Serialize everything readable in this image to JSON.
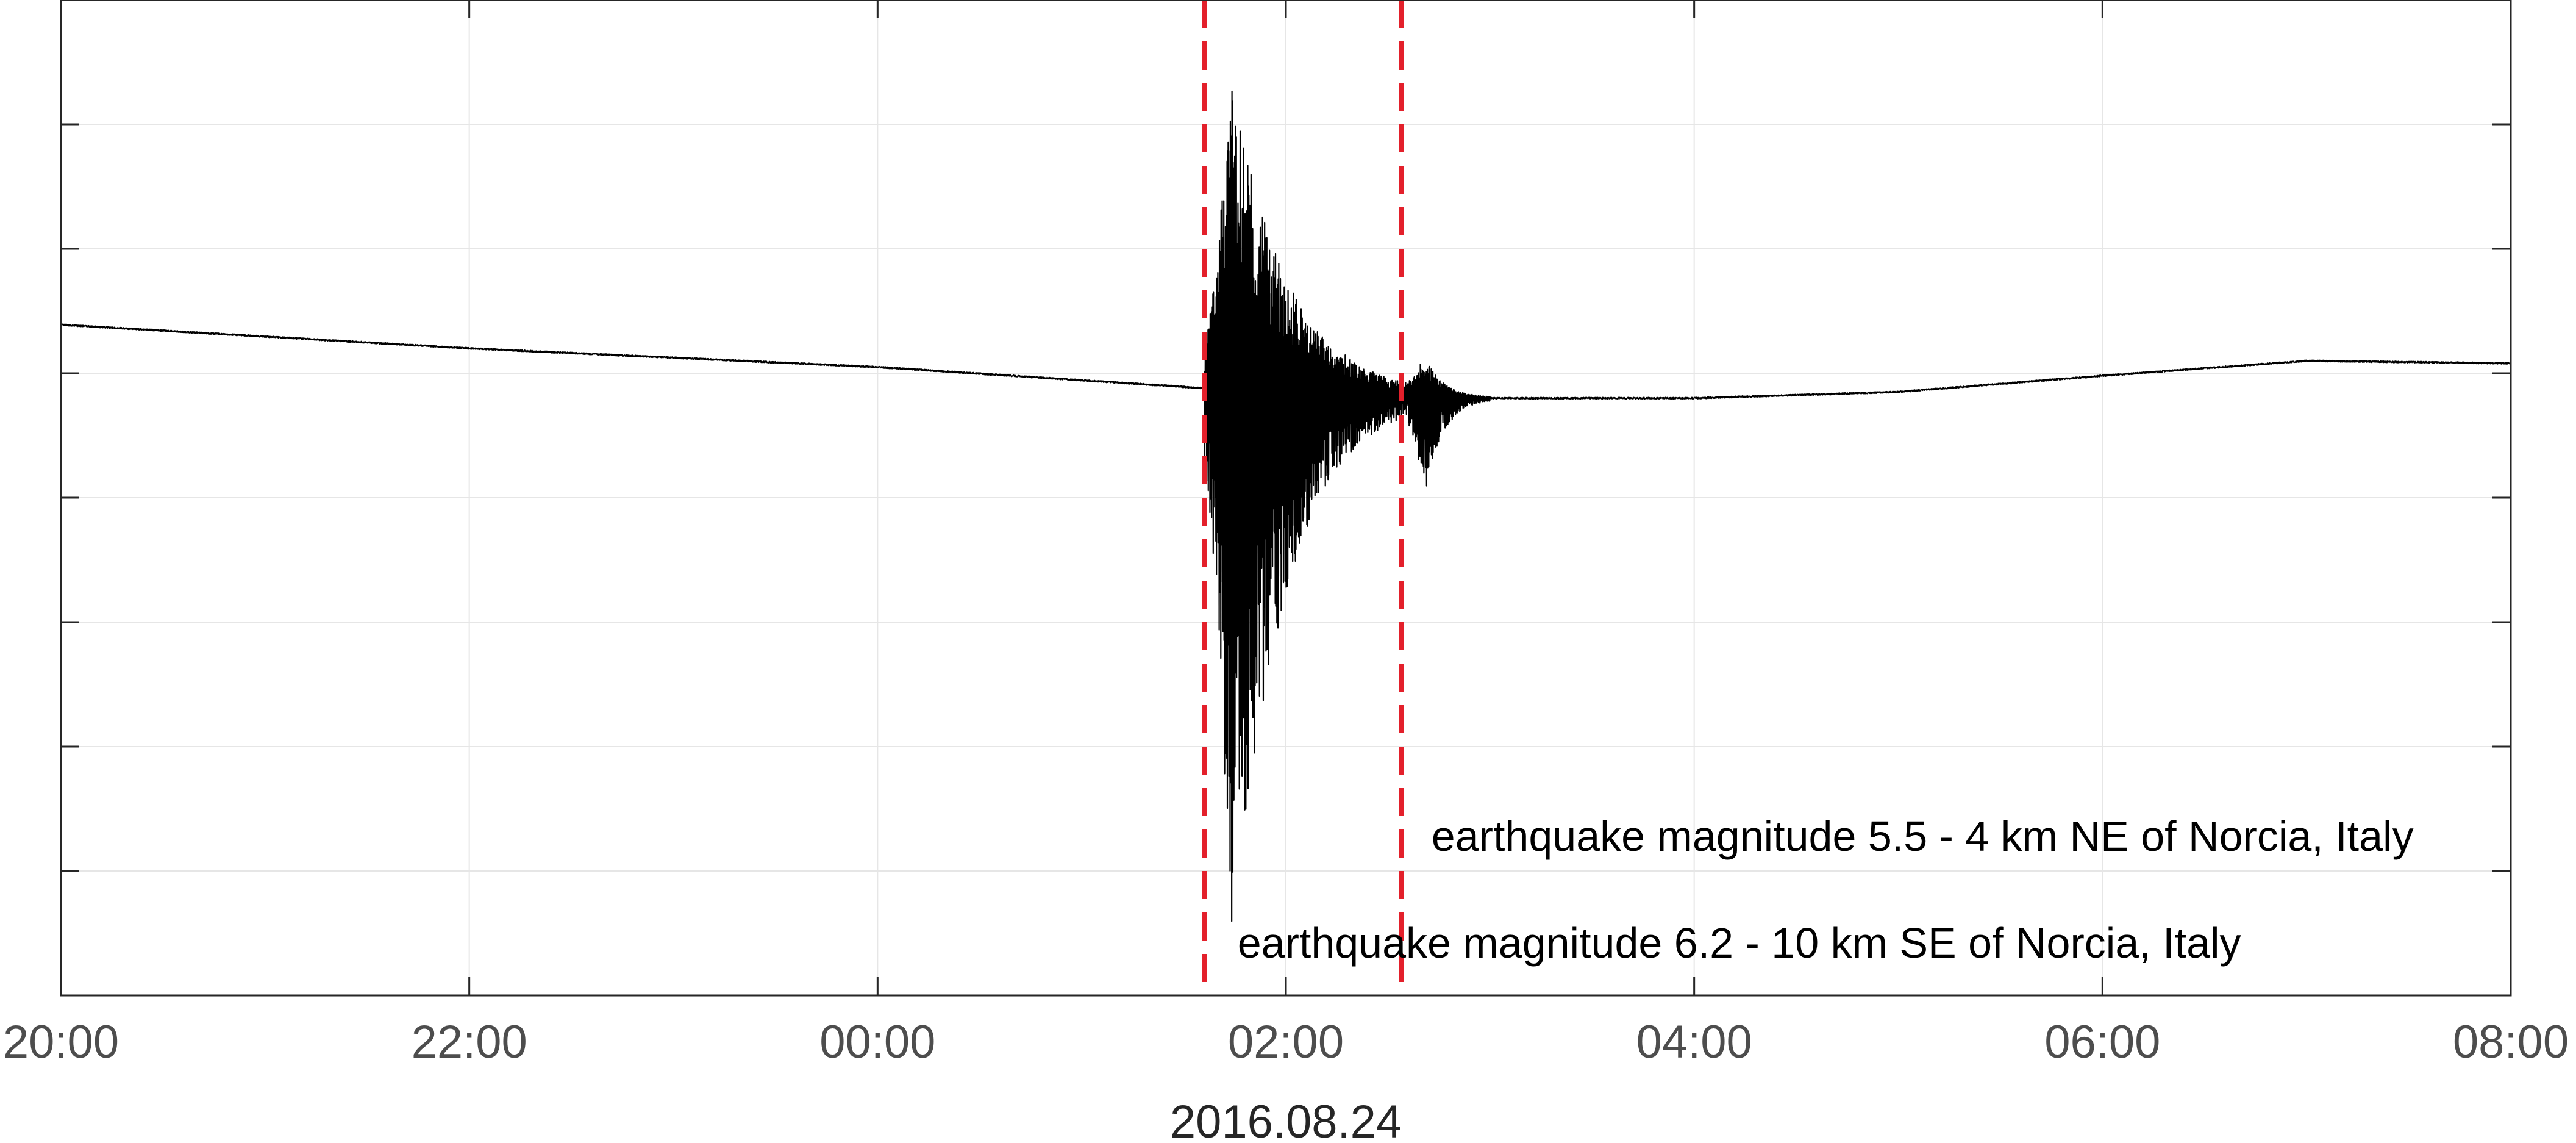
{
  "chart_data": {
    "type": "line",
    "title": "",
    "xlabel": "2016.08.24",
    "ylabel": "",
    "x_range": [
      "20:00",
      "08:00"
    ],
    "x_ticks": [
      "20:00",
      "22:00",
      "00:00",
      "02:00",
      "04:00",
      "06:00",
      "08:00"
    ],
    "y_tick_count": 9,
    "y_tick_labels_shown": false,
    "grid": true,
    "series": [
      {
        "color": "#000000",
        "baseline": [
          {
            "t": "20:00",
            "v": 0.39
          },
          {
            "t": "22:00",
            "v": 0.2
          },
          {
            "t": "00:00",
            "v": 0.05
          },
          {
            "t": "01:36",
            "v": -0.12
          },
          {
            "t": "02:00",
            "v": -0.15
          },
          {
            "t": "02:35",
            "v": -0.17
          },
          {
            "t": "03:00",
            "v": -0.2
          },
          {
            "t": "04:00",
            "v": -0.2
          },
          {
            "t": "05:00",
            "v": -0.15
          },
          {
            "t": "06:00",
            "v": -0.02
          },
          {
            "t": "07:00",
            "v": 0.1
          },
          {
            "t": "08:00",
            "v": 0.08
          }
        ],
        "events": [
          {
            "onset": "01:36",
            "peak_time": "01:44",
            "max": 2.55,
            "min": -4.55,
            "decay_end": "02:40"
          },
          {
            "onset": "02:36",
            "peak_time": "02:41",
            "max": 0.3,
            "min": -0.8,
            "decay_end": "03:00"
          }
        ]
      }
    ],
    "vlines": [
      {
        "t": "01:36",
        "color": "#e3202b",
        "style": "dashed"
      },
      {
        "t": "02:34",
        "color": "#e3202b",
        "style": "dashed"
      }
    ],
    "annotations": [
      {
        "text": "earthquake magnitude 6.2 - 10 km SE of Norcia, Italy",
        "t": "01:44"
      },
      {
        "text": "earthquake magnitude 5.5 - 4 km NE of Norcia, Italy",
        "t": "02:41"
      }
    ]
  }
}
